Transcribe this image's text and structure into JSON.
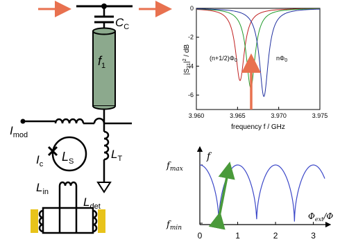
{
  "circuit": {
    "labels": {
      "cc_main": "C",
      "cc_sub": "C",
      "f1_main": "f",
      "f1_sub": "1",
      "imod_main": "I",
      "imod_sub": "mod",
      "lt_main": "L",
      "lt_sub": "T",
      "ic_main": "I",
      "ic_sub": "c",
      "ls_main": "L",
      "ls_sub": "S",
      "lin_main": "L",
      "lin_sub": "in",
      "ldet_main": "L",
      "ldet_sub": "det"
    },
    "colors": {
      "resonator_fill": "#8ca98d",
      "arrow": "#e8714f",
      "coil_block": "#e8c31a"
    },
    "icons": [
      "input-arrow-icon",
      "output-arrow-icon",
      "capacitor-icon",
      "ground-icon",
      "junction-x-icon",
      "inductor-coil-icon"
    ]
  },
  "s21_chart": {
    "type": "line",
    "ylabel": "|S21|² / dB",
    "ylabel_parts": {
      "pre": "|S",
      "sub": "21",
      "post": "|",
      "sup": "2",
      "unit": " / dB"
    },
    "xlabel": "frequency f / GHz",
    "xlim": [
      3.96,
      3.975
    ],
    "ylim": [
      -7,
      0
    ],
    "x_ticks": [
      "3.960",
      "3.965",
      "3.970",
      "3.975"
    ],
    "y_ticks": [
      "0",
      "-2",
      "-4",
      "-6"
    ],
    "annotations": {
      "left": "(n+1/2)Φ",
      "left_sub": "0",
      "right": "nΦ",
      "right_sub": "0"
    },
    "series": [
      {
        "color": "#c02020",
        "center": 3.9653,
        "min": -5.0
      },
      {
        "color": "#1f9a2a",
        "center": 3.9666,
        "min": -5.5
      },
      {
        "color": "#2030a0",
        "center": 3.9682,
        "min": -6.1
      }
    ],
    "marker_color": "#e8714f"
  },
  "flux_chart": {
    "type": "line",
    "ylabel": "f",
    "xlabel": "Φ",
    "xlabel_sub": "ext",
    "xlabel_tail": "/Φ",
    "x_ticks": [
      "0",
      "1",
      "2",
      "3"
    ],
    "y_ticks": [
      "f",
      "f"
    ],
    "y_tick_subs": [
      "max",
      "min"
    ],
    "xlim": [
      0,
      3.3
    ],
    "line_color": "#3b47c8",
    "arrow_color": "#4a9a3a"
  }
}
